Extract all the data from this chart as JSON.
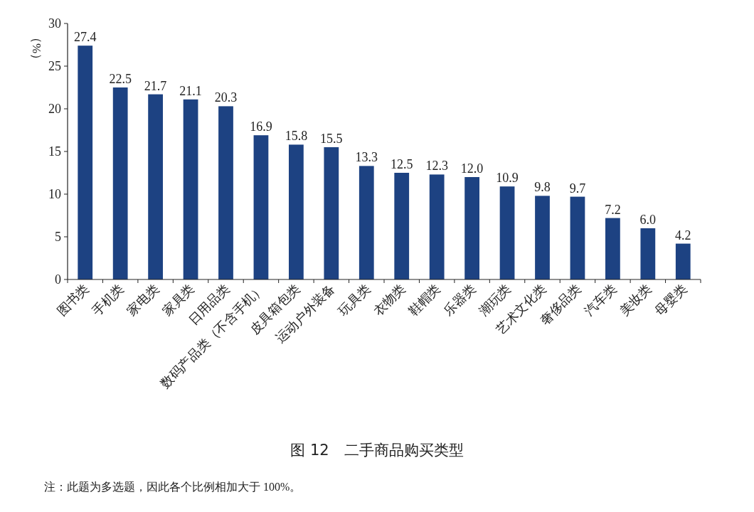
{
  "chart_data": {
    "type": "bar",
    "title": "图 12　二手商品购买类型",
    "ylabel": "（%）",
    "categories": [
      "图书类",
      "手机类",
      "家电类",
      "家具类",
      "日用品类",
      "数码产品类（不含手机）",
      "皮具箱包类",
      "运动户外装备",
      "玩具类",
      "衣物类",
      "鞋帽类",
      "乐器类",
      "潮玩类",
      "艺术文化类",
      "奢侈品类",
      "汽车类",
      "美妆类",
      "母婴类"
    ],
    "values": [
      27.4,
      22.5,
      21.7,
      21.1,
      20.3,
      16.9,
      15.8,
      15.5,
      13.3,
      12.5,
      12.3,
      12.0,
      10.9,
      9.8,
      9.7,
      7.2,
      6.0,
      4.2
    ],
    "value_labels": [
      "27.4",
      "22.5",
      "21.7",
      "21.1",
      "20.3",
      "16.9",
      "15.8",
      "15.5",
      "13.3",
      "12.5",
      "12.3",
      "12.0",
      "10.9",
      "9.8",
      "9.7",
      "7.2",
      "6.0",
      "4.2"
    ],
    "color": "#1d4282",
    "ylim": [
      0,
      30
    ],
    "yticks": [
      0,
      5,
      10,
      15,
      20,
      25,
      30
    ],
    "grid": false,
    "annotations": [
      "注：此题为多选题，因此各个比例相加大于 100%。"
    ]
  }
}
